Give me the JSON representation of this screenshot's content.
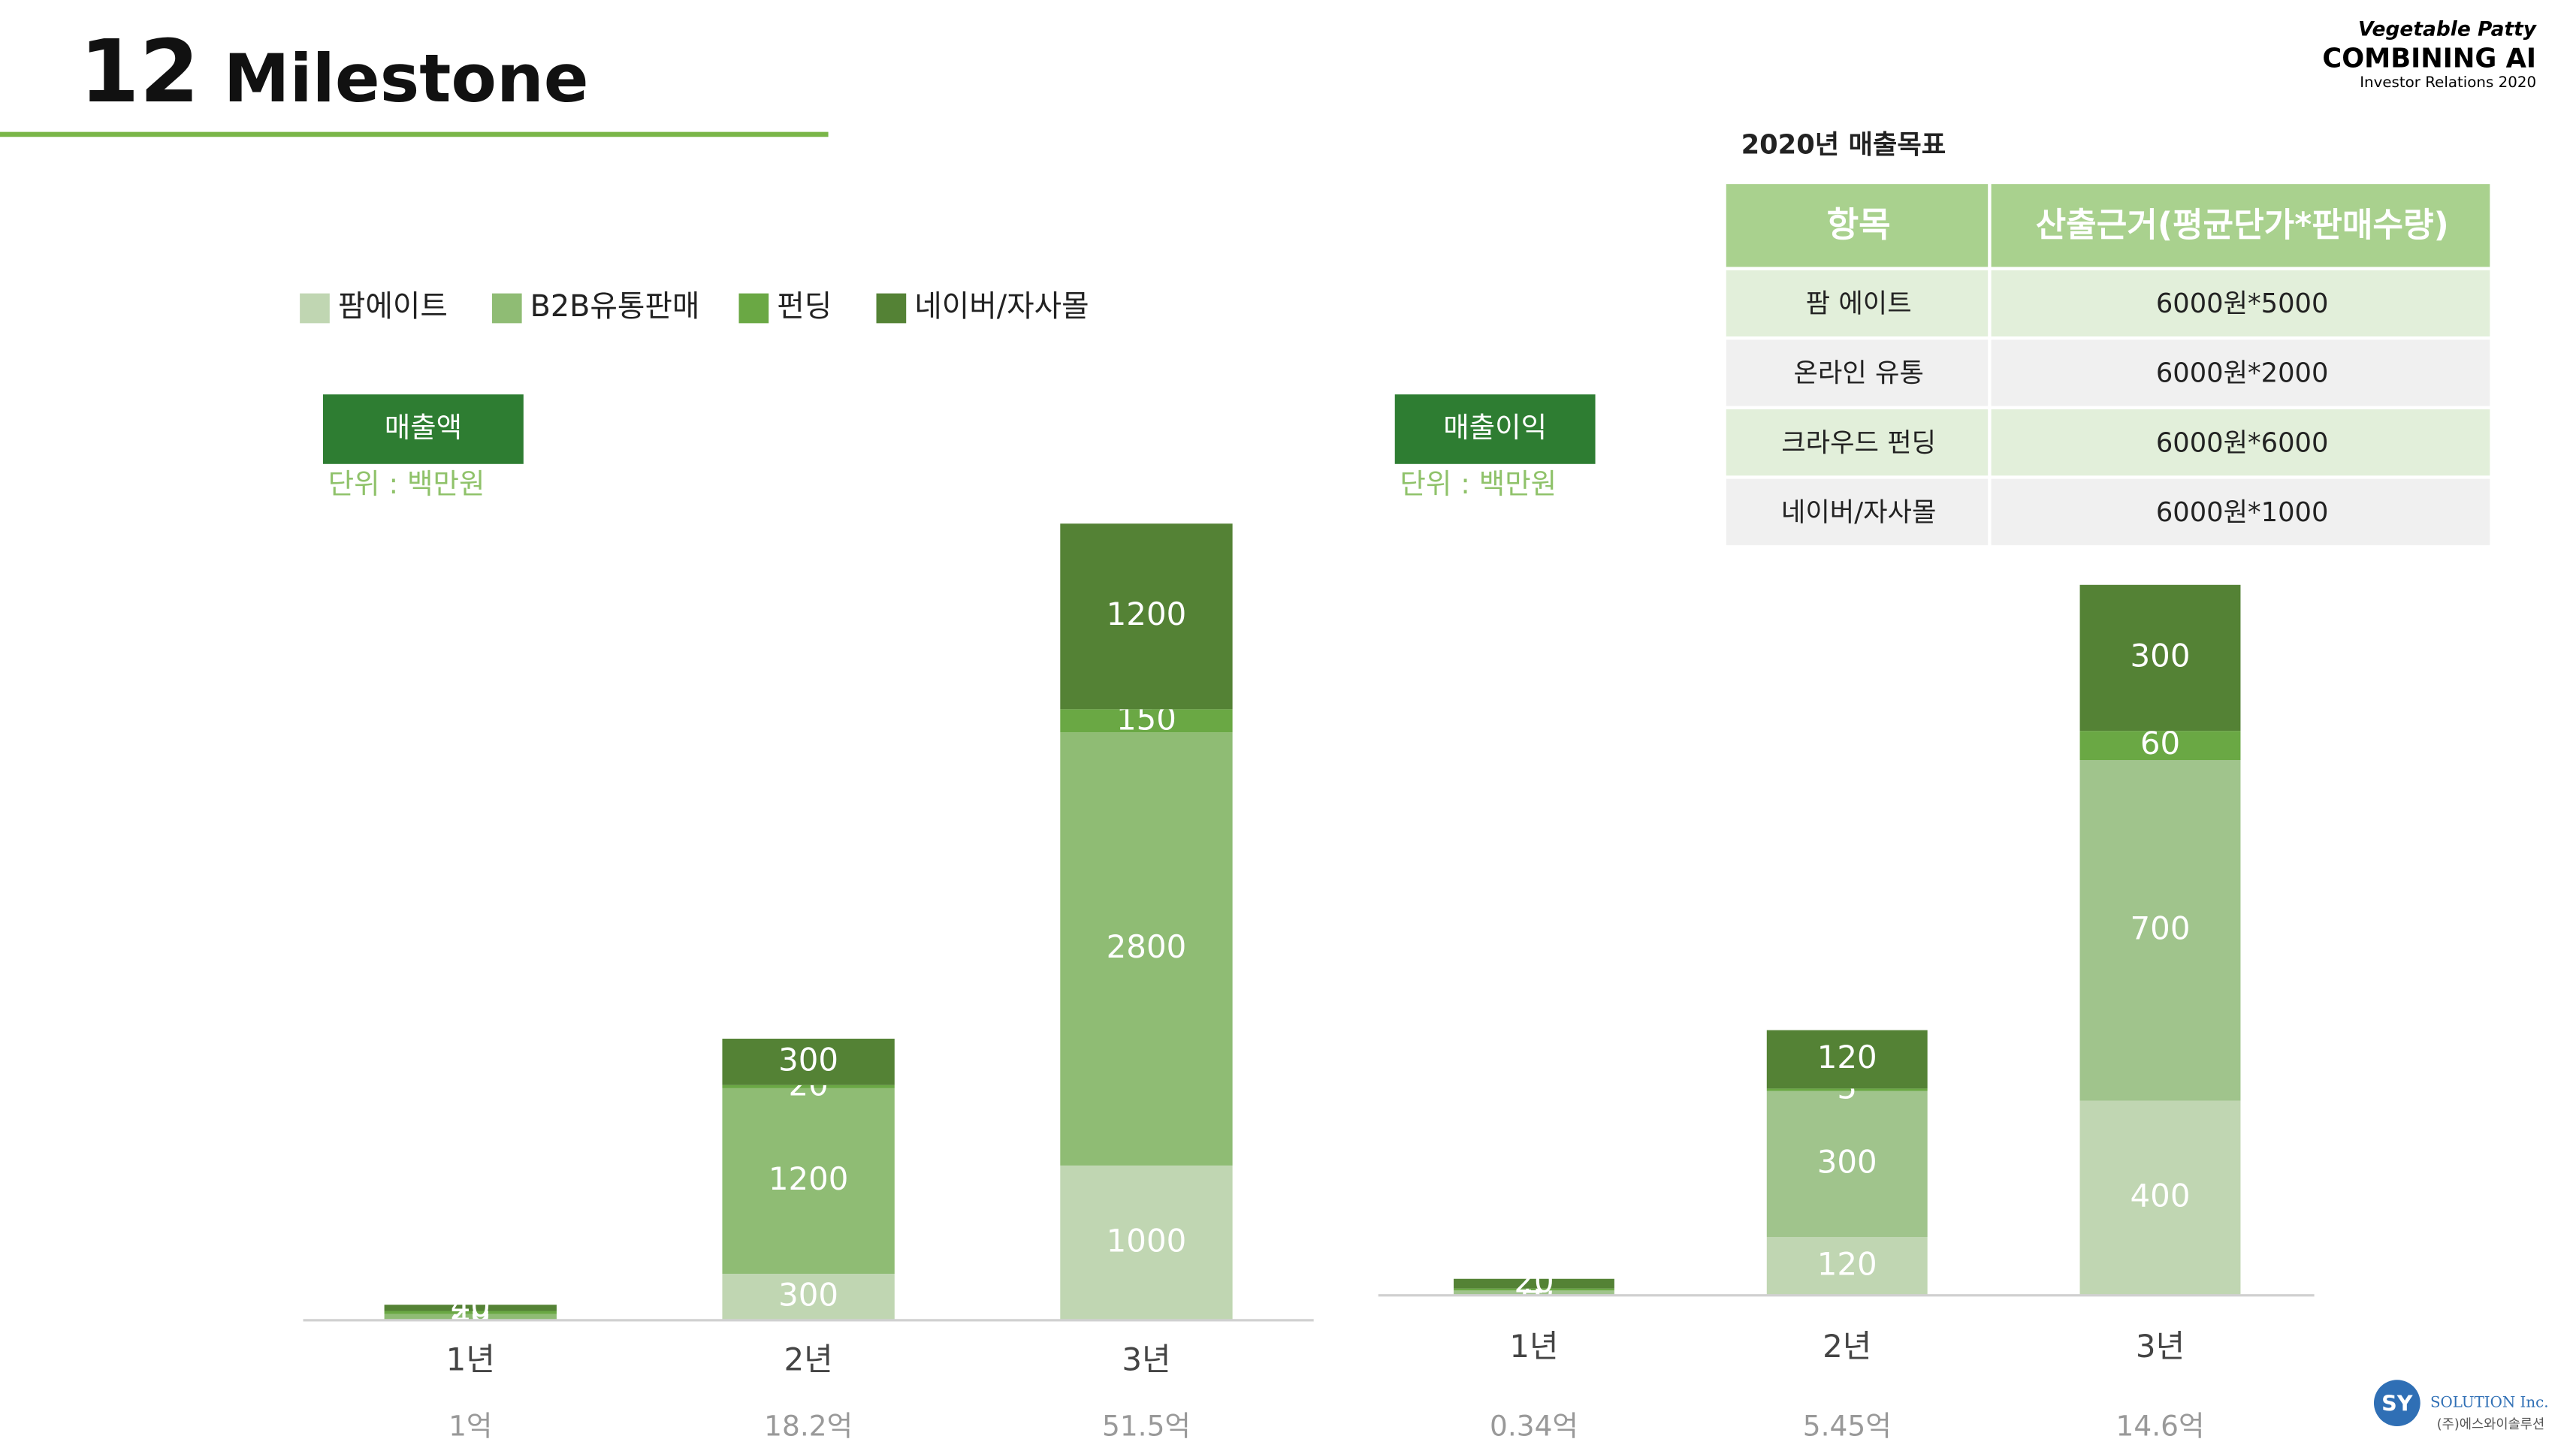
{
  "header": {
    "number": "12",
    "title": "Milestone"
  },
  "brand": {
    "line1": "Vegetable Patty",
    "line2": "COMBINING AI",
    "line3": "Investor Relations 2020"
  },
  "chart_data": [
    {
      "type": "bar",
      "stacked": true,
      "title": "매출액",
      "unit_note": "단위 : 백만원",
      "categories": [
        "1년",
        "2년",
        "3년"
      ],
      "category_notes": [
        "1억",
        "18.2억",
        "51.5억"
      ],
      "series": [
        {
          "name": "팜에이트",
          "color": "#c0d6b2",
          "values": [
            null,
            300,
            1000
          ]
        },
        {
          "name": "B2B유통판매",
          "color": "#8fbc74",
          "values": [
            40,
            1200,
            2800
          ]
        },
        {
          "name": "펀딩",
          "color": "#6aa844",
          "values": [
            20,
            20,
            150
          ]
        },
        {
          "name": "네이버/자사몰",
          "color": "#548235",
          "values": [
            40,
            300,
            1200
          ]
        }
      ]
    },
    {
      "type": "bar",
      "stacked": true,
      "title": "매출이익",
      "unit_note": "단위 : 백만원",
      "categories": [
        "1년",
        "2년",
        "3년"
      ],
      "category_notes": [
        "0.34억",
        "5.45억",
        "14.6억"
      ],
      "series": [
        {
          "name": "팜에이트",
          "color": "#c0d6b2",
          "values": [
            null,
            120,
            400
          ]
        },
        {
          "name": "B2B유통판매",
          "color": "#a0c48c",
          "values": [
            10,
            300,
            700
          ]
        },
        {
          "name": "펀딩",
          "color": "#6aa844",
          "values": [
            4,
            5,
            60
          ]
        },
        {
          "name": "네이버/자사몰",
          "color": "#548235",
          "values": [
            20,
            120,
            300
          ]
        }
      ]
    }
  ],
  "table": {
    "title": "2020년 매출목표",
    "columns": [
      "항목",
      "산출근거(평균단가*판매수량)"
    ],
    "rows": [
      [
        "팜 에이트",
        "6000원*5000"
      ],
      [
        "온라인 유통",
        "6000원*2000"
      ],
      [
        "크라우드 펀딩",
        "6000원*6000"
      ],
      [
        "네이버/자사몰",
        "6000원*1000"
      ]
    ]
  },
  "logo": {
    "mark": "SY",
    "name": "SOLUTION Inc.",
    "korean": "(주)에스와이솔루션"
  }
}
